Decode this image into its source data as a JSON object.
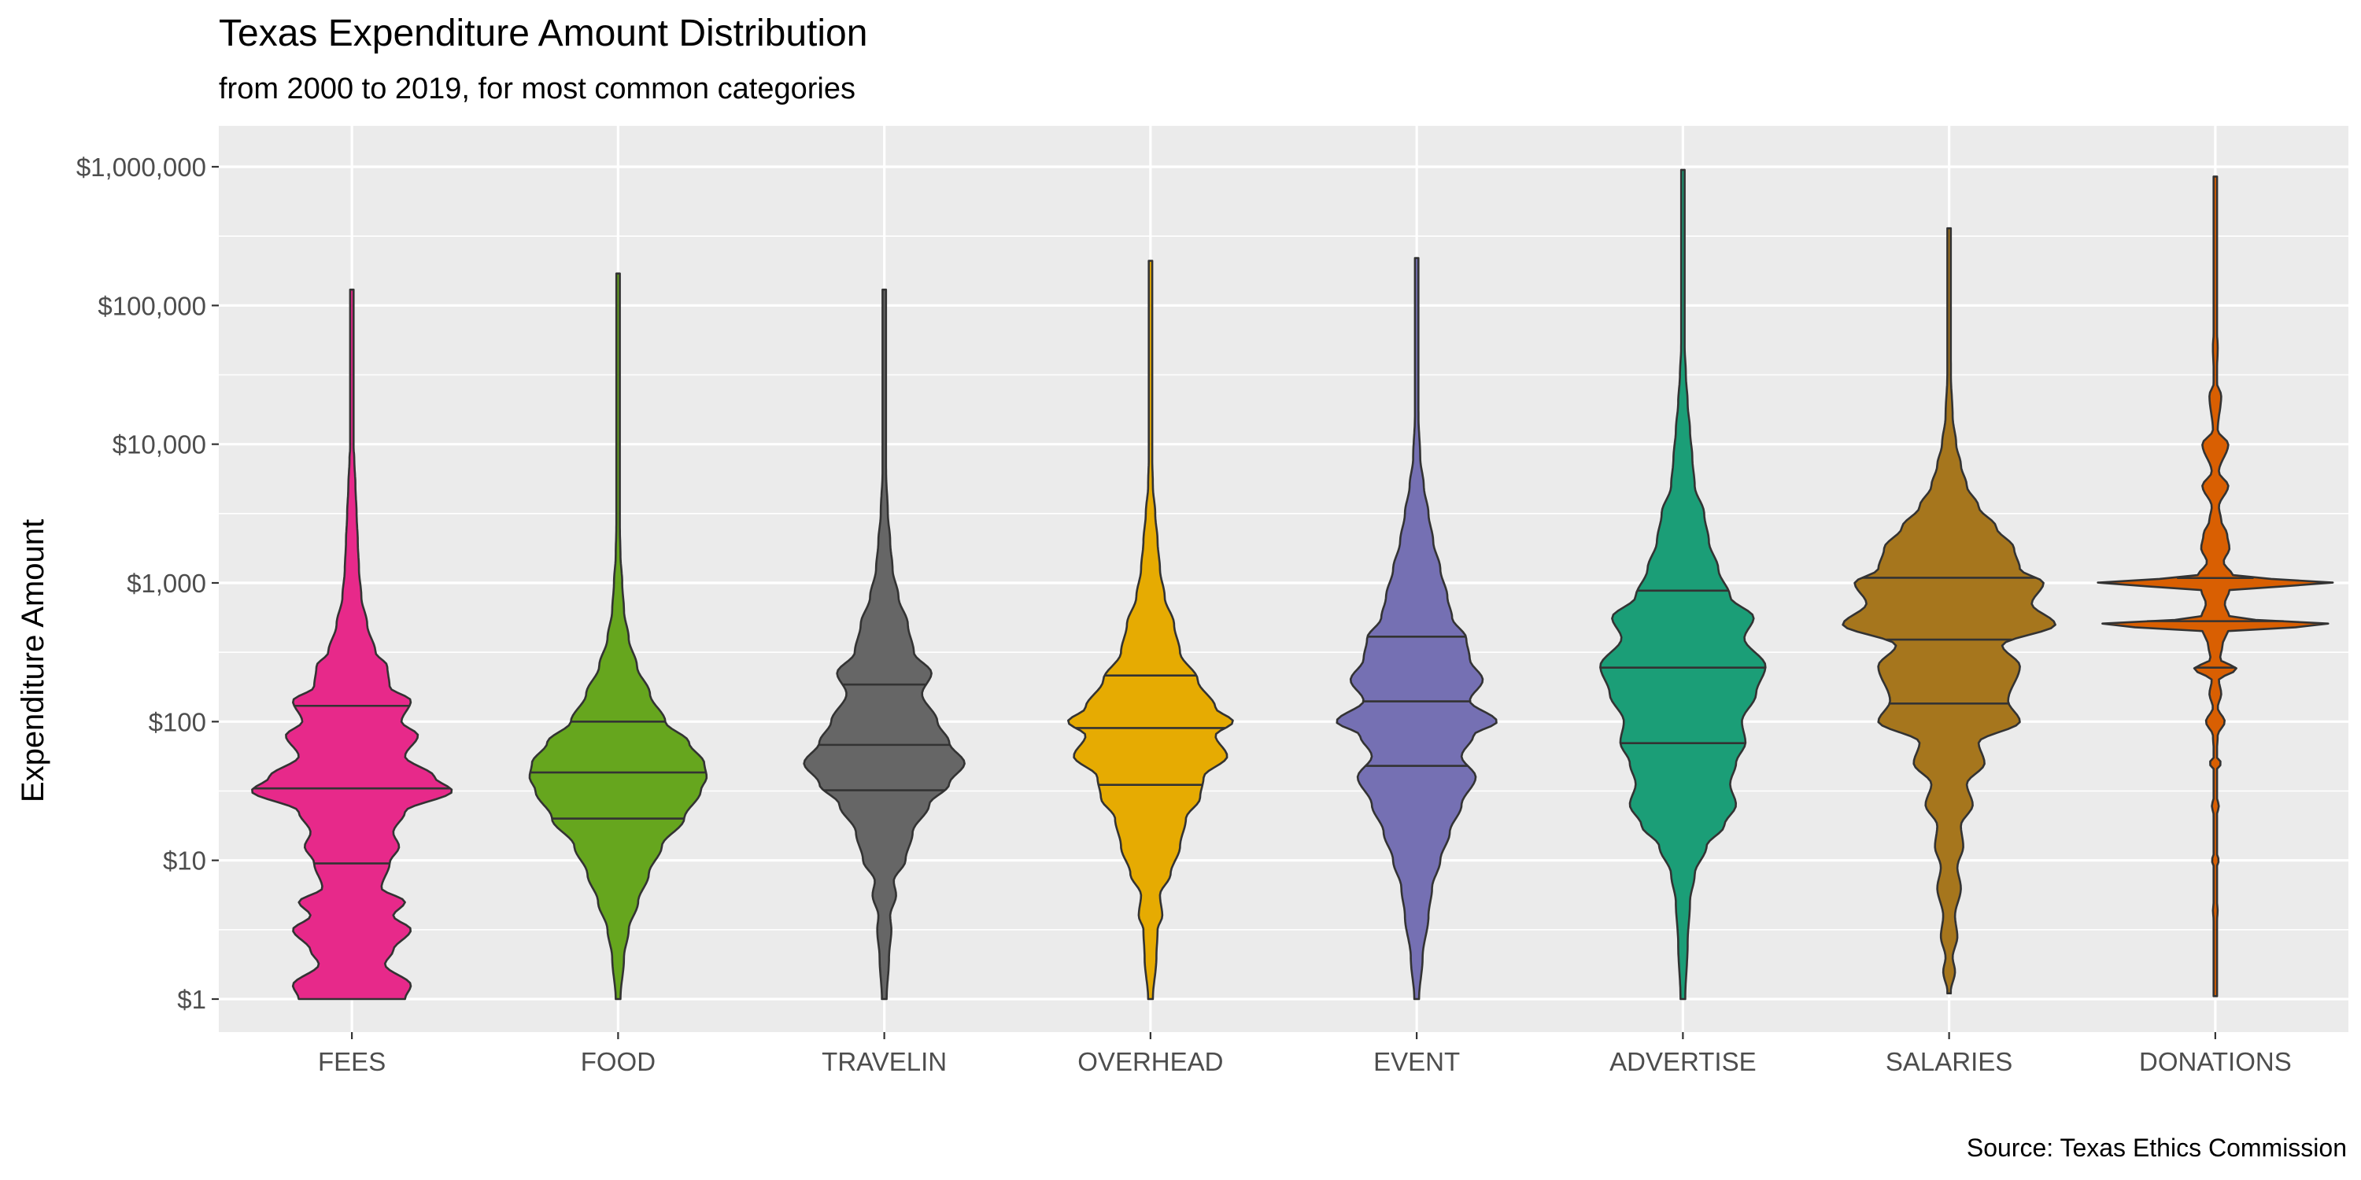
{
  "chart_data": {
    "type": "violin",
    "title": "Texas Expenditure Amount Distribution",
    "subtitle": "from 2000 to 2019, for most common categories",
    "caption": "Source: Texas Ethics Commission",
    "xlabel": "",
    "ylabel": "Expenditure Amount",
    "y_scale": "log10",
    "ylim": [
      0.75,
      1400000
    ],
    "y_ticks": [
      1,
      10,
      100,
      1000,
      10000,
      100000,
      1000000
    ],
    "y_tick_labels": [
      "$1",
      "$10",
      "$100",
      "$1,000",
      "$10,000",
      "$100,000",
      "$1,000,000"
    ],
    "grid": true,
    "legend": "none",
    "categories": [
      "FEES",
      "FOOD",
      "TRAVELIN",
      "OVERHEAD",
      "EVENT",
      "ADVERTISE",
      "SALARIES",
      "DONATIONS"
    ],
    "series": [
      {
        "category": "FEES",
        "color": "#E7298A",
        "min": 1,
        "max": 130000,
        "quantiles": [
          9.5,
          33,
          130
        ],
        "density": [
          [
            0,
            0.45
          ],
          [
            0.1,
            0.5
          ],
          [
            0.25,
            0.28
          ],
          [
            0.35,
            0.35
          ],
          [
            0.5,
            0.5
          ],
          [
            0.6,
            0.35
          ],
          [
            0.7,
            0.45
          ],
          [
            0.8,
            0.25
          ],
          [
            0.98,
            0.32
          ],
          [
            1.1,
            0.4
          ],
          [
            1.2,
            0.35
          ],
          [
            1.35,
            0.45
          ],
          [
            1.5,
            0.85
          ],
          [
            1.6,
            0.7
          ],
          [
            1.75,
            0.45
          ],
          [
            1.9,
            0.56
          ],
          [
            2.0,
            0.42
          ],
          [
            2.15,
            0.5
          ],
          [
            2.25,
            0.32
          ],
          [
            2.4,
            0.3
          ],
          [
            2.5,
            0.2
          ],
          [
            2.7,
            0.13
          ],
          [
            2.9,
            0.08
          ],
          [
            3.1,
            0.06
          ],
          [
            3.3,
            0.05
          ],
          [
            3.5,
            0.04
          ],
          [
            3.7,
            0.03
          ],
          [
            3.9,
            0.02
          ],
          [
            4.0,
            0.012
          ],
          [
            4.5,
            0.008
          ],
          [
            5.11,
            0.005
          ]
        ]
      },
      {
        "category": "FOOD",
        "color": "#66A61E",
        "min": 1,
        "max": 170000,
        "quantiles": [
          20,
          43,
          100
        ],
        "density": [
          [
            0,
            0.02
          ],
          [
            0.3,
            0.05
          ],
          [
            0.5,
            0.09
          ],
          [
            0.7,
            0.17
          ],
          [
            0.9,
            0.26
          ],
          [
            1.1,
            0.37
          ],
          [
            1.3,
            0.56
          ],
          [
            1.5,
            0.7
          ],
          [
            1.6,
            0.75
          ],
          [
            1.7,
            0.73
          ],
          [
            1.85,
            0.6
          ],
          [
            2.0,
            0.4
          ],
          [
            2.2,
            0.27
          ],
          [
            2.4,
            0.16
          ],
          [
            2.6,
            0.09
          ],
          [
            2.8,
            0.05
          ],
          [
            3.0,
            0.035
          ],
          [
            3.2,
            0.02
          ],
          [
            3.4,
            0.015
          ],
          [
            3.6,
            0.008
          ],
          [
            4.0,
            0.006
          ],
          [
            5.23,
            0.005
          ]
        ]
      },
      {
        "category": "TRAVELIN",
        "color": "#666666",
        "min": 1,
        "max": 130000,
        "quantiles": [
          32,
          68,
          185
        ],
        "density": [
          [
            0,
            0.02
          ],
          [
            0.3,
            0.04
          ],
          [
            0.5,
            0.06
          ],
          [
            0.6,
            0.05
          ],
          [
            0.75,
            0.1
          ],
          [
            0.85,
            0.08
          ],
          [
            1.0,
            0.18
          ],
          [
            1.2,
            0.24
          ],
          [
            1.4,
            0.38
          ],
          [
            1.55,
            0.55
          ],
          [
            1.7,
            0.68
          ],
          [
            1.85,
            0.55
          ],
          [
            2.0,
            0.45
          ],
          [
            2.2,
            0.32
          ],
          [
            2.35,
            0.4
          ],
          [
            2.5,
            0.25
          ],
          [
            2.7,
            0.2
          ],
          [
            2.9,
            0.12
          ],
          [
            3.1,
            0.07
          ],
          [
            3.3,
            0.05
          ],
          [
            3.5,
            0.03
          ],
          [
            3.8,
            0.015
          ],
          [
            4.0,
            0.008
          ],
          [
            5.11,
            0.005
          ]
        ]
      },
      {
        "category": "OVERHEAD",
        "color": "#E6AB02",
        "min": 1,
        "max": 210000,
        "quantiles": [
          35,
          90,
          215
        ],
        "density": [
          [
            0,
            0.02
          ],
          [
            0.3,
            0.05
          ],
          [
            0.5,
            0.06
          ],
          [
            0.6,
            0.1
          ],
          [
            0.75,
            0.08
          ],
          [
            0.9,
            0.17
          ],
          [
            1.1,
            0.25
          ],
          [
            1.3,
            0.3
          ],
          [
            1.45,
            0.42
          ],
          [
            1.6,
            0.45
          ],
          [
            1.75,
            0.65
          ],
          [
            1.9,
            0.55
          ],
          [
            2.0,
            0.7
          ],
          [
            2.1,
            0.55
          ],
          [
            2.3,
            0.4
          ],
          [
            2.5,
            0.25
          ],
          [
            2.7,
            0.2
          ],
          [
            2.9,
            0.12
          ],
          [
            3.1,
            0.08
          ],
          [
            3.3,
            0.06
          ],
          [
            3.5,
            0.04
          ],
          [
            3.7,
            0.02
          ],
          [
            4.0,
            0.01
          ],
          [
            4.2,
            0.006
          ],
          [
            5.32,
            0.005
          ]
        ]
      },
      {
        "category": "EVENT",
        "color": "#7570B3",
        "min": 1,
        "max": 220000,
        "quantiles": [
          48,
          140,
          410
        ],
        "density": [
          [
            0,
            0.02
          ],
          [
            0.3,
            0.05
          ],
          [
            0.6,
            0.1
          ],
          [
            0.8,
            0.13
          ],
          [
            1.0,
            0.2
          ],
          [
            1.2,
            0.28
          ],
          [
            1.4,
            0.38
          ],
          [
            1.6,
            0.5
          ],
          [
            1.75,
            0.38
          ],
          [
            1.9,
            0.48
          ],
          [
            2.0,
            0.68
          ],
          [
            2.15,
            0.45
          ],
          [
            2.3,
            0.56
          ],
          [
            2.45,
            0.45
          ],
          [
            2.6,
            0.42
          ],
          [
            2.75,
            0.3
          ],
          [
            2.9,
            0.26
          ],
          [
            3.1,
            0.2
          ],
          [
            3.3,
            0.14
          ],
          [
            3.5,
            0.1
          ],
          [
            3.7,
            0.06
          ],
          [
            3.9,
            0.03
          ],
          [
            4.2,
            0.015
          ],
          [
            4.5,
            0.008
          ],
          [
            5.34,
            0.005
          ]
        ]
      },
      {
        "category": "ADVERTISE",
        "color": "#1B9E77",
        "min": 1,
        "max": 950000,
        "quantiles": [
          70,
          245,
          880
        ],
        "density": [
          [
            0,
            0.02
          ],
          [
            0.4,
            0.04
          ],
          [
            0.7,
            0.06
          ],
          [
            0.9,
            0.1
          ],
          [
            1.1,
            0.2
          ],
          [
            1.25,
            0.35
          ],
          [
            1.4,
            0.45
          ],
          [
            1.55,
            0.4
          ],
          [
            1.7,
            0.45
          ],
          [
            1.85,
            0.53
          ],
          [
            2.0,
            0.5
          ],
          [
            2.2,
            0.62
          ],
          [
            2.4,
            0.7
          ],
          [
            2.6,
            0.52
          ],
          [
            2.75,
            0.6
          ],
          [
            2.9,
            0.4
          ],
          [
            3.1,
            0.3
          ],
          [
            3.3,
            0.22
          ],
          [
            3.5,
            0.18
          ],
          [
            3.7,
            0.1
          ],
          [
            3.9,
            0.08
          ],
          [
            4.1,
            0.06
          ],
          [
            4.3,
            0.04
          ],
          [
            4.5,
            0.025
          ],
          [
            4.7,
            0.015
          ],
          [
            5.0,
            0.008
          ],
          [
            5.98,
            0.005
          ]
        ]
      },
      {
        "category": "SALARIES",
        "color": "#A6761D",
        "min": 1.1,
        "max": 360000,
        "quantiles": [
          135,
          390,
          1090
        ],
        "density": [
          [
            0.04,
            0.01
          ],
          [
            0.2,
            0.05
          ],
          [
            0.3,
            0.03
          ],
          [
            0.45,
            0.07
          ],
          [
            0.6,
            0.05
          ],
          [
            0.8,
            0.1
          ],
          [
            0.95,
            0.07
          ],
          [
            1.1,
            0.12
          ],
          [
            1.25,
            0.1
          ],
          [
            1.4,
            0.2
          ],
          [
            1.55,
            0.15
          ],
          [
            1.7,
            0.3
          ],
          [
            1.85,
            0.25
          ],
          [
            2.0,
            0.6
          ],
          [
            2.15,
            0.5
          ],
          [
            2.4,
            0.6
          ],
          [
            2.55,
            0.45
          ],
          [
            2.7,
            0.9
          ],
          [
            2.85,
            0.7
          ],
          [
            3.0,
            0.8
          ],
          [
            3.1,
            0.6
          ],
          [
            3.25,
            0.55
          ],
          [
            3.4,
            0.4
          ],
          [
            3.55,
            0.25
          ],
          [
            3.7,
            0.15
          ],
          [
            3.85,
            0.1
          ],
          [
            4.0,
            0.06
          ],
          [
            4.2,
            0.03
          ],
          [
            4.5,
            0.015
          ],
          [
            5.56,
            0.005
          ]
        ]
      },
      {
        "category": "DONATIONS",
        "color": "#D95F02",
        "min": 1.05,
        "max": 850000,
        "quantiles": [
          245,
          530,
          1085
        ],
        "density": [
          [
            0.02,
            0.005
          ],
          [
            0.5,
            0.008
          ],
          [
            0.65,
            0.02
          ],
          [
            0.7,
            0.008
          ],
          [
            0.95,
            0.008
          ],
          [
            1.0,
            0.03
          ],
          [
            1.05,
            0.008
          ],
          [
            1.3,
            0.008
          ],
          [
            1.4,
            0.03
          ],
          [
            1.45,
            0.008
          ],
          [
            1.65,
            0.01
          ],
          [
            1.7,
            0.05
          ],
          [
            1.75,
            0.01
          ],
          [
            1.9,
            0.02
          ],
          [
            2.0,
            0.08
          ],
          [
            2.1,
            0.02
          ],
          [
            2.2,
            0.05
          ],
          [
            2.3,
            0.03
          ],
          [
            2.38,
            0.18
          ],
          [
            2.45,
            0.04
          ],
          [
            2.55,
            0.06
          ],
          [
            2.65,
            0.1
          ],
          [
            2.7,
            1.0
          ],
          [
            2.75,
            0.12
          ],
          [
            2.85,
            0.08
          ],
          [
            2.95,
            0.12
          ],
          [
            3.0,
            1.0
          ],
          [
            3.05,
            0.15
          ],
          [
            3.15,
            0.07
          ],
          [
            3.25,
            0.12
          ],
          [
            3.35,
            0.1
          ],
          [
            3.45,
            0.05
          ],
          [
            3.55,
            0.03
          ],
          [
            3.7,
            0.11
          ],
          [
            3.8,
            0.03
          ],
          [
            4.0,
            0.11
          ],
          [
            4.1,
            0.02
          ],
          [
            4.35,
            0.05
          ],
          [
            4.45,
            0.01
          ],
          [
            4.7,
            0.02
          ],
          [
            4.9,
            0.005
          ],
          [
            5.93,
            0.005
          ]
        ]
      }
    ]
  }
}
